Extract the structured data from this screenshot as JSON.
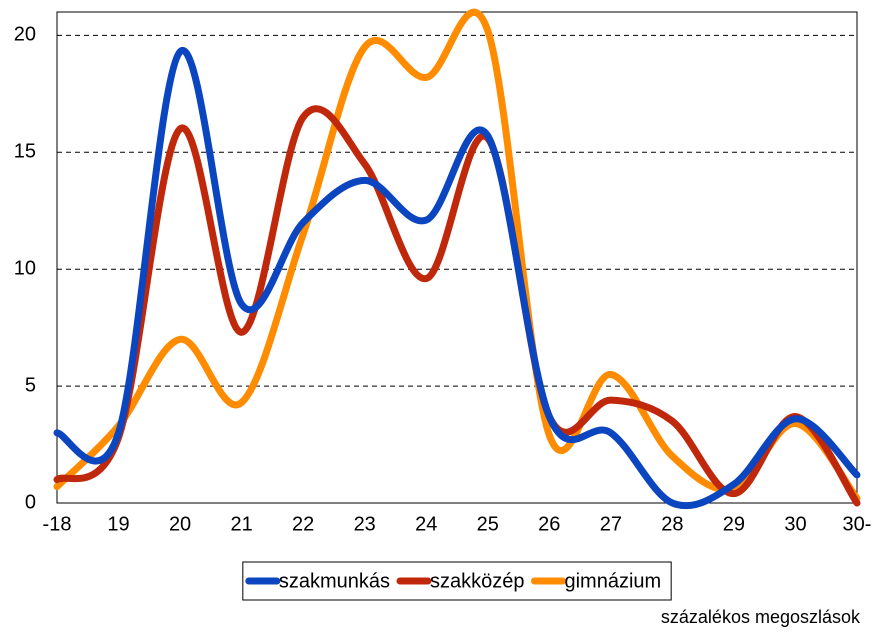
{
  "chart_data": {
    "type": "line",
    "categories": [
      "-18",
      "19",
      "20",
      "21",
      "22",
      "23",
      "24",
      "25",
      "26",
      "27",
      "28",
      "29",
      "30",
      "30-"
    ],
    "series": [
      {
        "name": "szakmunkás",
        "color": "#0b45c0",
        "values": [
          3.0,
          3.0,
          19.3,
          8.5,
          12.0,
          13.8,
          12.1,
          15.7,
          3.7,
          3.0,
          0.0,
          0.8,
          3.6,
          1.2
        ]
      },
      {
        "name": "szakközép",
        "color": "#c0280c",
        "values": [
          1.0,
          2.8,
          16.0,
          7.3,
          16.5,
          14.5,
          9.6,
          15.6,
          3.7,
          4.4,
          3.5,
          0.4,
          3.7,
          0.0
        ]
      },
      {
        "name": "gimnázium",
        "color": "#ff8c00",
        "values": [
          0.7,
          3.3,
          7.0,
          4.3,
          11.5,
          19.5,
          18.2,
          20.2,
          2.9,
          5.5,
          2.0,
          0.6,
          3.4,
          0.2
        ]
      }
    ],
    "ylim": [
      0,
      21
    ],
    "yticks": [
      0,
      5,
      10,
      15,
      20
    ],
    "grid": true,
    "legend": "bottom",
    "note": "százalékos megoszlások"
  }
}
